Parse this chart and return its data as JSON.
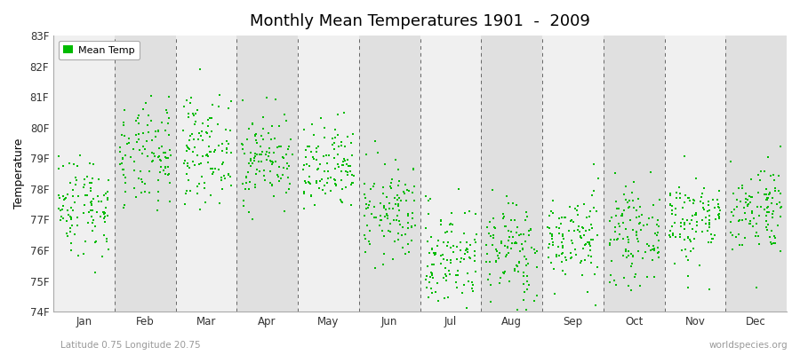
{
  "title": "Monthly Mean Temperatures 1901  -  2009",
  "ylabel": "Temperature",
  "xlabel_bottom": "Latitude 0.75 Longitude 20.75",
  "xlabel_right": "worldspecies.org",
  "legend_label": "Mean Temp",
  "dot_color": "#00bb00",
  "band_colors_light": "#f0f0f0",
  "band_colors_dark": "#e0e0e0",
  "ylim_min": 74,
  "ylim_max": 83,
  "yticks": [
    74,
    75,
    76,
    77,
    78,
    79,
    80,
    81,
    82,
    83
  ],
  "ytick_labels": [
    "74F",
    "75F",
    "76F",
    "77F",
    "78F",
    "79F",
    "80F",
    "81F",
    "82F",
    "83F"
  ],
  "months": [
    "Jan",
    "Feb",
    "Mar",
    "Apr",
    "May",
    "Jun",
    "Jul",
    "Aug",
    "Sep",
    "Oct",
    "Nov",
    "Dec"
  ],
  "month_centers": [
    0.5,
    1.5,
    2.5,
    3.5,
    4.5,
    5.5,
    6.5,
    7.5,
    8.5,
    9.5,
    10.5,
    11.5
  ],
  "month_boundaries": [
    0,
    1,
    2,
    3,
    4,
    5,
    6,
    7,
    8,
    9,
    10,
    11,
    12
  ],
  "num_years": 109,
  "seed": 42,
  "monthly_means": [
    77.5,
    79.0,
    79.3,
    79.0,
    78.6,
    77.2,
    75.8,
    76.0,
    76.4,
    76.5,
    77.0,
    77.4
  ],
  "monthly_stds": [
    0.85,
    0.85,
    0.85,
    0.75,
    0.75,
    0.8,
    0.85,
    0.85,
    0.75,
    0.75,
    0.75,
    0.75
  ],
  "dot_size": 3,
  "dot_alpha": 1.0,
  "figsize": [
    9.0,
    4.0
  ],
  "dpi": 100,
  "title_fontsize": 13,
  "axis_label_fontsize": 9,
  "tick_fontsize": 8.5,
  "legend_fontsize": 8
}
